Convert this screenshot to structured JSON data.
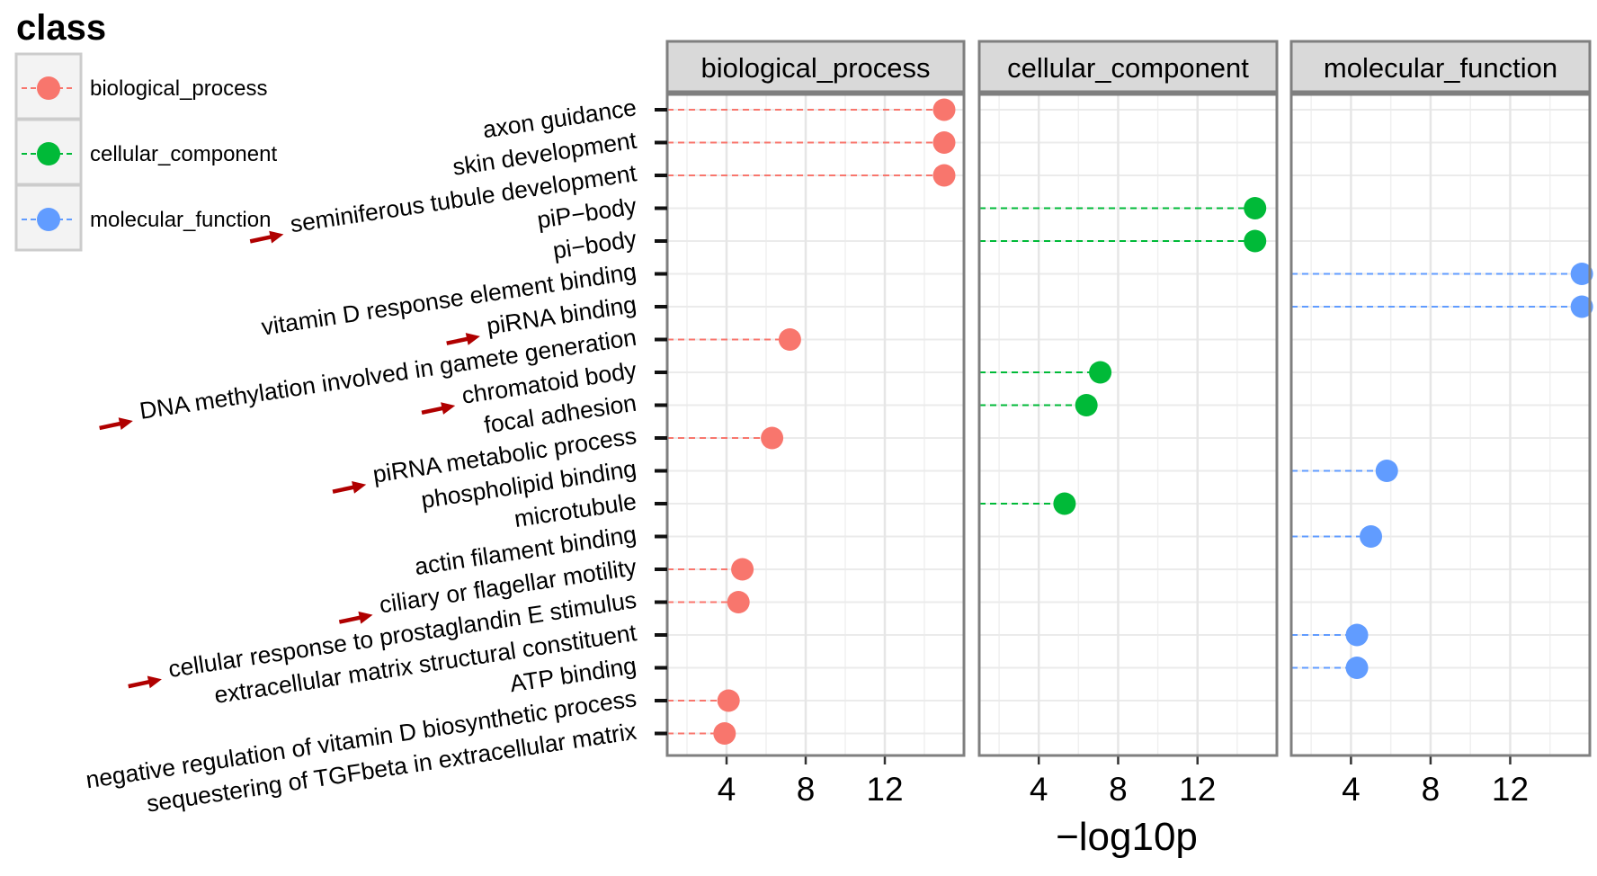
{
  "chart_data": {
    "type": "lollipop",
    "facets": [
      "biological_process",
      "cellular_component",
      "molecular_function"
    ],
    "x_label": "−log10p",
    "x_ticks": [
      4,
      8,
      12
    ],
    "xlim": [
      1.0,
      16.0
    ],
    "legend": {
      "title": "class",
      "position": "top-left",
      "entries": [
        {
          "name": "biological_process",
          "color": "#F8766D"
        },
        {
          "name": "cellular_component",
          "color": "#00BA38"
        },
        {
          "name": "molecular_function",
          "color": "#619CFF"
        }
      ]
    },
    "grid": true,
    "categories": [
      "axon guidance",
      "skin development",
      "seminiferous tubule development",
      "piP−body",
      "pi−body",
      "vitamin D response element binding",
      "piRNA binding",
      "DNA methylation involved in gamete generation",
      "chromatoid body",
      "focal adhesion",
      "piRNA metabolic process",
      "phospholipid binding",
      "microtubule",
      "actin filament binding",
      "ciliary or flagellar motility",
      "cellular response to prostaglandin E stimulus",
      "extracellular matrix structural constituent",
      "ATP binding",
      "negative regulation of vitamin D biosynthetic process",
      "sequestering of TGFbeta in extracellular matrix"
    ],
    "highlighted": [
      "seminiferous tubule development",
      "piRNA binding",
      "DNA methylation involved in gamete generation",
      "chromatoid body",
      "piRNA metabolic process",
      "ciliary or flagellar motility",
      "cellular response to prostaglandin E stimulus"
    ],
    "points": [
      {
        "term": "axon guidance",
        "class": "biological_process",
        "value": 15.0
      },
      {
        "term": "skin development",
        "class": "biological_process",
        "value": 15.0
      },
      {
        "term": "seminiferous tubule development",
        "class": "biological_process",
        "value": 15.0
      },
      {
        "term": "piP−body",
        "class": "cellular_component",
        "value": 14.9
      },
      {
        "term": "pi−body",
        "class": "cellular_component",
        "value": 14.9
      },
      {
        "term": "vitamin D response element binding",
        "class": "molecular_function",
        "value": 15.6
      },
      {
        "term": "piRNA binding",
        "class": "molecular_function",
        "value": 15.6
      },
      {
        "term": "DNA methylation involved in gamete generation",
        "class": "biological_process",
        "value": 7.2
      },
      {
        "term": "chromatoid body",
        "class": "cellular_component",
        "value": 7.1
      },
      {
        "term": "focal adhesion",
        "class": "cellular_component",
        "value": 6.4
      },
      {
        "term": "piRNA metabolic process",
        "class": "biological_process",
        "value": 6.3
      },
      {
        "term": "phospholipid binding",
        "class": "molecular_function",
        "value": 5.8
      },
      {
        "term": "microtubule",
        "class": "cellular_component",
        "value": 5.3
      },
      {
        "term": "actin filament binding",
        "class": "molecular_function",
        "value": 5.0
      },
      {
        "term": "ciliary or flagellar motility",
        "class": "biological_process",
        "value": 4.8
      },
      {
        "term": "cellular response to prostaglandin E stimulus",
        "class": "biological_process",
        "value": 4.6
      },
      {
        "term": "extracellular matrix structural constituent",
        "class": "molecular_function",
        "value": 4.3
      },
      {
        "term": "ATP binding",
        "class": "molecular_function",
        "value": 4.3
      },
      {
        "term": "negative regulation of vitamin D biosynthetic process",
        "class": "biological_process",
        "value": 4.1
      },
      {
        "term": "sequestering of TGFbeta in extracellular matrix",
        "class": "biological_process",
        "value": 3.9
      }
    ]
  }
}
